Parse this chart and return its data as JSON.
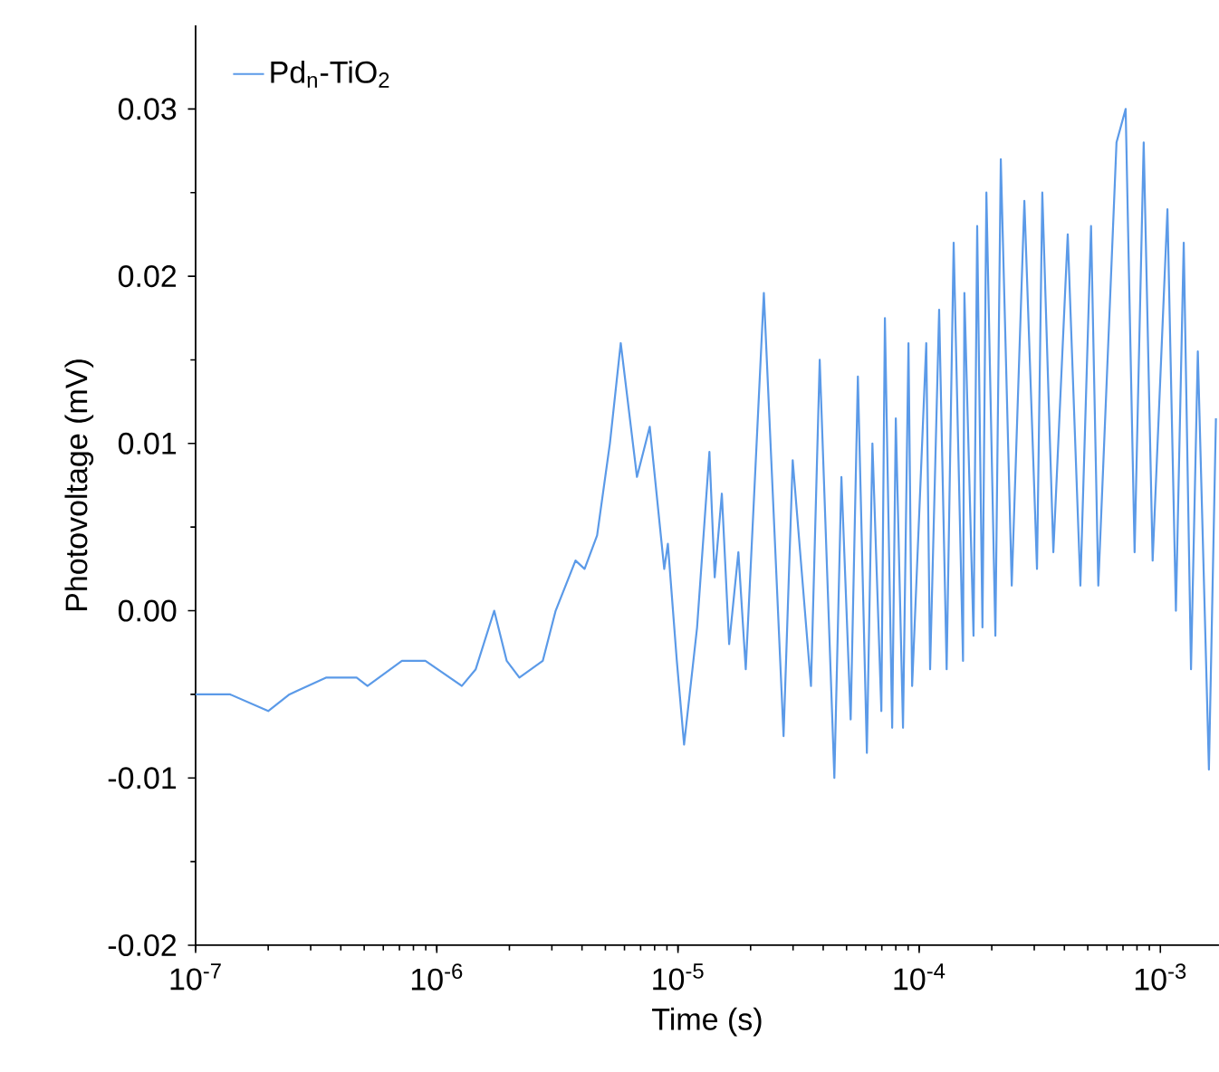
{
  "chart_data": {
    "type": "line",
    "xlabel": "Time (s)",
    "ylabel": "Photovoltage (mV)",
    "log": "x",
    "xlim": [
      1e-07,
      0.00175
    ],
    "ylim": [
      -0.02,
      0.035
    ],
    "xticks": [
      {
        "value": 1e-07,
        "label": "10$^{-7}$"
      },
      {
        "value": 1e-06,
        "label": "10$^{-6}$"
      },
      {
        "value": 1e-05,
        "label": "10$^{-5}$"
      },
      {
        "value": 0.0001,
        "label": "10$^{-4}$"
      },
      {
        "value": 0.001,
        "label": "10$^{-3}$"
      }
    ],
    "yticks": [
      {
        "value": -0.02,
        "label": "-0.02"
      },
      {
        "value": -0.01,
        "label": "-0.01"
      },
      {
        "value": 0,
        "label": "0.00"
      },
      {
        "value": 0.01,
        "label": "0.01"
      },
      {
        "value": 0.02,
        "label": "0.02"
      },
      {
        "value": 0.03,
        "label": "0.03"
      }
    ],
    "legend": "top left",
    "grid": false,
    "marker": "none",
    "line_style": "solid",
    "series": [
      {
        "name": "Pd$_{n}$-TiO$_{2}$",
        "color": "#5b9ae8",
        "x": [
          1e-07,
          1.39e-07,
          2e-07,
          2.45e-07,
          3.47e-07,
          4.65e-07,
          5.16e-07,
          7.17e-07,
          8.97e-07,
          1.27e-06,
          1.45e-06,
          1.73e-06,
          1.95e-06,
          2.2e-06,
          2.75e-06,
          3.11e-06,
          3.76e-06,
          4.1e-06,
          4.62e-06,
          5.22e-06,
          5.79e-06,
          6.76e-06,
          7.64e-06,
          8.77e-06,
          9.08e-06,
          9.89e-06,
          1.06e-05,
          1.2e-05,
          1.35e-05,
          1.42e-05,
          1.52e-05,
          1.63e-05,
          1.78e-05,
          1.91e-05,
          2.27e-05,
          2.74e-05,
          2.99e-05,
          3.56e-05,
          3.87e-05,
          4.45e-05,
          4.76e-05,
          5.2e-05,
          5.57e-05,
          6.07e-05,
          6.4e-05,
          6.97e-05,
          7.21e-05,
          7.73e-05,
          8e-05,
          8.57e-05,
          9.03e-05,
          9.35e-05,
          0.000107,
          0.000111,
          0.000121,
          0.00013,
          0.000139,
          0.000152,
          0.000154,
          0.000168,
          0.000174,
          0.000183,
          0.00019,
          0.000207,
          0.000218,
          0.000242,
          0.000273,
          0.000308,
          0.000324,
          0.00036,
          0.000413,
          0.000466,
          0.000516,
          0.000553,
          0.000658,
          0.000718,
          0.000782,
          0.000853,
          0.000929,
          0.00107,
          0.00116,
          0.00125,
          0.00134,
          0.00143,
          0.00159,
          0.0017
        ],
        "values": [
          -0.005,
          -0.005,
          -0.006,
          -0.005,
          -0.004,
          -0.004,
          -0.0045,
          -0.003,
          -0.003,
          -0.0045,
          -0.0035,
          0.0,
          -0.003,
          -0.004,
          -0.003,
          0.0,
          0.003,
          0.0025,
          0.0045,
          0.01,
          0.016,
          0.008,
          0.011,
          0.0025,
          0.004,
          -0.003,
          -0.008,
          -0.001,
          0.0095,
          0.002,
          0.007,
          -0.002,
          0.0035,
          -0.0035,
          0.019,
          -0.0075,
          0.009,
          -0.0045,
          0.015,
          -0.01,
          0.008,
          -0.0065,
          0.014,
          -0.0085,
          0.01,
          -0.006,
          0.0175,
          -0.007,
          0.0115,
          -0.007,
          0.016,
          -0.0045,
          0.016,
          -0.0035,
          0.018,
          -0.0035,
          0.022,
          -0.003,
          0.019,
          -0.0015,
          0.023,
          -0.001,
          0.025,
          -0.0015,
          0.027,
          0.0015,
          0.0245,
          0.0025,
          0.025,
          0.0035,
          0.0225,
          0.0015,
          0.023,
          0.0015,
          0.028,
          0.03,
          0.0035,
          0.028,
          0.003,
          0.024,
          0.0,
          0.022,
          -0.0035,
          0.0155,
          -0.0095,
          0.0115
        ]
      }
    ]
  }
}
